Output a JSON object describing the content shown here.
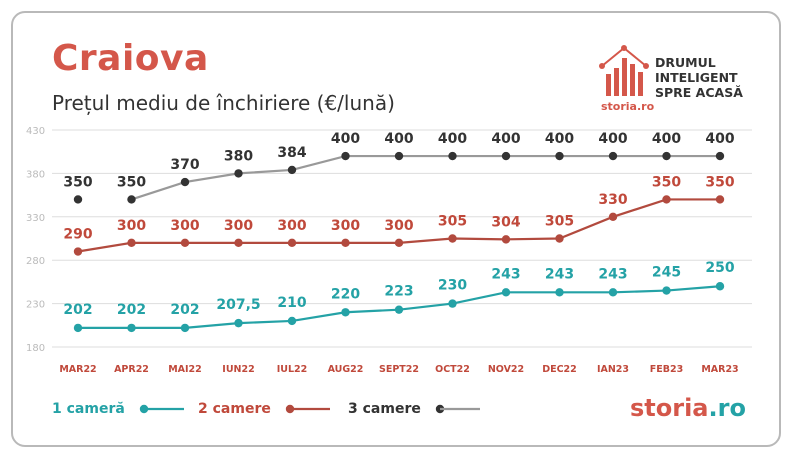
{
  "header": {
    "city": "Craiova",
    "subtitle": "Prețul mediu de închiriere (€/lună)"
  },
  "brand": {
    "slogan": [
      "DRUMUL",
      "INTELIGENT",
      "SPRE ACASĂ"
    ],
    "logo_small": "storia.ro",
    "logo_big_a": "storia",
    "logo_big_b": ".ro"
  },
  "colors": {
    "series1": "#24a2a6",
    "series2": "#b24a3e",
    "series3_line": "#999999",
    "series3_dot": "#333333",
    "label1": "#24a2a6",
    "label2": "#c0493b",
    "label3": "#333333",
    "xlabel": "#c0493b",
    "grid": "#dddddd",
    "tick": "#bbbbbb"
  },
  "chart_data": {
    "type": "line",
    "categories": [
      "MAR22",
      "APR22",
      "MAI22",
      "IUN22",
      "IUL22",
      "AUG22",
      "SEPT22",
      "OCT22",
      "NOV22",
      "DEC22",
      "IAN23",
      "FEB23",
      "MAR23"
    ],
    "ylim": [
      180,
      430
    ],
    "yticks": [
      180,
      230,
      280,
      330,
      380,
      430
    ],
    "grid": true,
    "legend_position": "bottom-left",
    "series": [
      {
        "name": "1 cameră",
        "values": [
          202,
          202,
          202,
          207.5,
          210,
          220,
          223,
          230,
          243,
          243,
          243,
          245,
          250
        ],
        "labels": [
          "202",
          "202",
          "202",
          "207,5",
          "210",
          "220",
          "223",
          "230",
          "243",
          "243",
          "243",
          "245",
          "250"
        ]
      },
      {
        "name": "2 camere",
        "values": [
          290,
          300,
          300,
          300,
          300,
          300,
          300,
          305,
          304,
          305,
          330,
          350,
          350
        ],
        "labels": [
          "290",
          "300",
          "300",
          "300",
          "300",
          "300",
          "300",
          "305",
          "304",
          "305",
          "330",
          "350",
          "350"
        ]
      },
      {
        "name": "3 camere",
        "values": [
          350,
          350,
          370,
          380,
          384,
          400,
          400,
          400,
          400,
          400,
          400,
          400,
          400
        ],
        "labels": [
          "350",
          "350",
          "370",
          "380",
          "384",
          "400",
          "400",
          "400",
          "400",
          "400",
          "400",
          "400",
          "400"
        ]
      }
    ]
  }
}
